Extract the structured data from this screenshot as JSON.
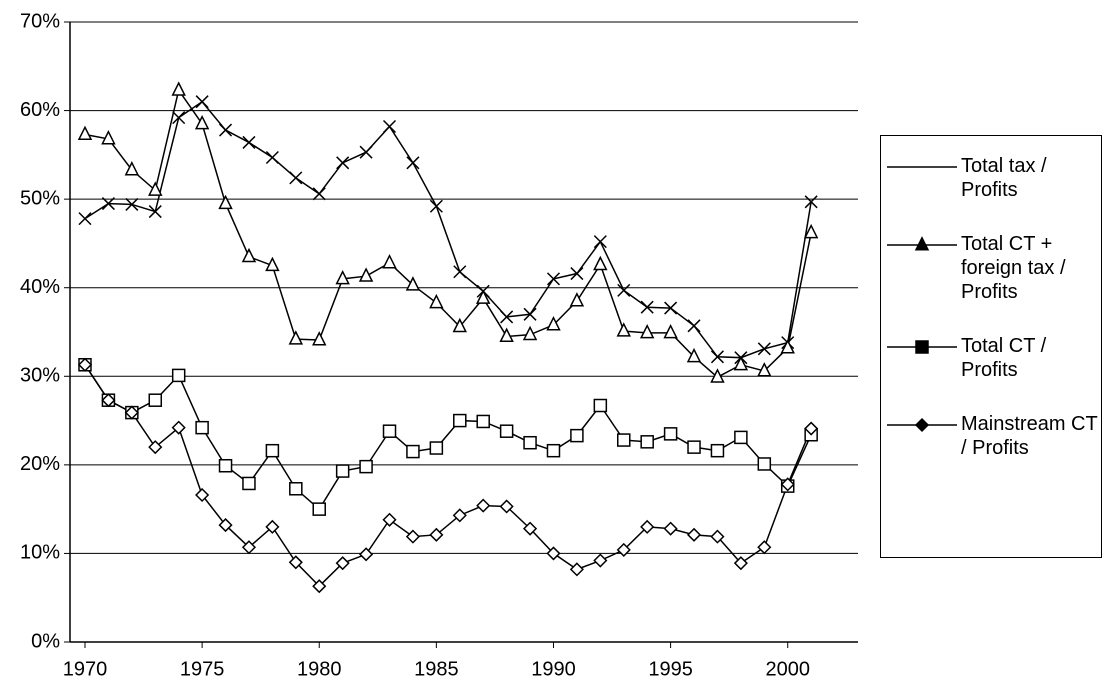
{
  "chart_data": {
    "type": "line",
    "x": [
      1970,
      1971,
      1972,
      1973,
      1974,
      1975,
      1976,
      1977,
      1978,
      1979,
      1980,
      1981,
      1982,
      1983,
      1984,
      1985,
      1986,
      1987,
      1988,
      1989,
      1990,
      1991,
      1992,
      1993,
      1994,
      1995,
      1996,
      1997,
      1998,
      1999,
      2000,
      2001
    ],
    "series": [
      {
        "name": "Total tax / Profits",
        "color": "#000000",
        "marker": "x",
        "values": [
          47.8,
          49.5,
          49.4,
          48.6,
          59.2,
          61.0,
          57.8,
          56.4,
          54.7,
          52.4,
          50.6,
          54.1,
          55.3,
          58.2,
          54.1,
          49.2,
          41.8,
          39.6,
          36.7,
          37.0,
          41.0,
          41.6,
          45.2,
          39.7,
          37.8,
          37.7,
          35.7,
          32.2,
          32.1,
          33.1,
          33.8,
          49.7
        ]
      },
      {
        "name": "Total CT + foreign tax / Profits",
        "color": "#000000",
        "marker": "triangle",
        "values": [
          57.3,
          56.8,
          53.3,
          51.0,
          62.3,
          58.5,
          49.5,
          43.5,
          42.5,
          34.2,
          34.1,
          41.0,
          41.3,
          42.8,
          40.3,
          38.3,
          35.6,
          38.8,
          34.5,
          34.7,
          35.8,
          38.5,
          42.6,
          35.1,
          34.9,
          34.9,
          32.2,
          29.9,
          31.3,
          30.6,
          33.2,
          46.2
        ]
      },
      {
        "name": "Total CT / Profits",
        "color": "#000000",
        "marker": "square",
        "values": [
          31.3,
          27.3,
          25.9,
          27.3,
          30.1,
          24.2,
          19.9,
          17.9,
          21.6,
          17.3,
          15.0,
          19.3,
          19.8,
          23.8,
          21.5,
          21.9,
          25.0,
          24.9,
          23.8,
          22.5,
          21.6,
          23.3,
          26.7,
          22.8,
          22.6,
          23.5,
          22.0,
          21.6,
          23.1,
          20.1,
          17.6,
          23.4
        ]
      },
      {
        "name": "Mainstream CT / Profits",
        "color": "#000000",
        "marker": "diamond",
        "values": [
          31.3,
          27.3,
          25.9,
          22.0,
          24.2,
          16.6,
          13.2,
          10.7,
          13.0,
          9.0,
          6.3,
          8.9,
          9.9,
          13.8,
          11.9,
          12.1,
          14.3,
          15.4,
          15.3,
          12.8,
          10.0,
          8.2,
          9.2,
          10.4,
          13.0,
          12.8,
          12.1,
          11.9,
          8.9,
          10.7,
          17.8,
          24.1
        ]
      }
    ],
    "xlim": [
      1969.36,
      2003
    ],
    "xticks": [
      1970,
      1975,
      1980,
      1985,
      1990,
      1995,
      2000
    ],
    "ylim": [
      0,
      70
    ],
    "yticks": [
      {
        "value": 0,
        "label": "0%"
      },
      {
        "value": 10,
        "label": "10%"
      },
      {
        "value": 20,
        "label": "20%"
      },
      {
        "value": 30,
        "label": "30%"
      },
      {
        "value": 40,
        "label": "40%"
      },
      {
        "value": 50,
        "label": "50%"
      },
      {
        "value": 60,
        "label": "60%"
      },
      {
        "value": 70,
        "label": "70%"
      }
    ],
    "grid": true,
    "legend": "right"
  }
}
